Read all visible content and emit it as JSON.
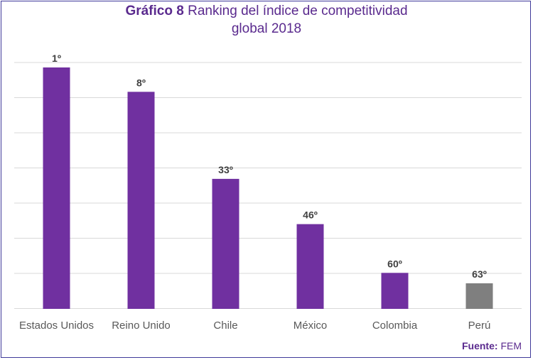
{
  "chart_data": {
    "type": "bar",
    "title_lead": "Gráfico 8",
    "title_rest_line1": "Ranking del índice de competitividad",
    "title_rest_line2": "global 2018",
    "categories": [
      "Estados Unidos",
      "Reino Unido",
      "Chile",
      "México",
      "Colombia",
      "Perú"
    ],
    "values": [
      1,
      8,
      33,
      46,
      60,
      63
    ],
    "data_labels": [
      "1º",
      "8º",
      "33º",
      "46º",
      "60º",
      "63º"
    ],
    "bar_colors": [
      "#7030a0",
      "#7030a0",
      "#7030a0",
      "#7030a0",
      "#7030a0",
      "#7f7f7f"
    ],
    "y_axis_inverted": true,
    "grid": true,
    "legend": "none",
    "xlabel": "",
    "ylabel": ""
  },
  "source": {
    "label": "Fuente:",
    "value": "FEM"
  }
}
